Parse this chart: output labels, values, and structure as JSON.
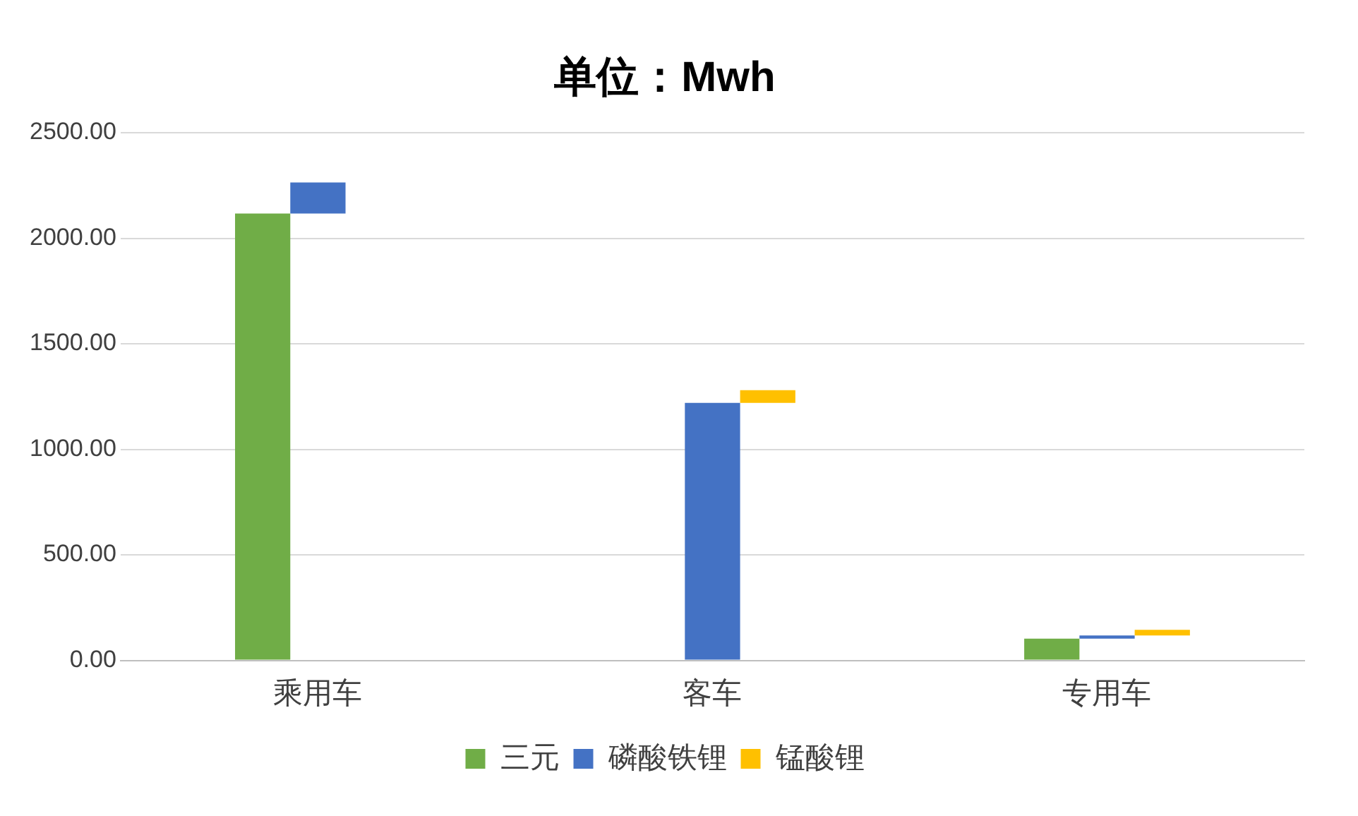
{
  "chart_data": {
    "type": "bar",
    "title": "单位：Mwh",
    "categories": [
      "乘用车",
      "客车",
      "专用车"
    ],
    "series": [
      {
        "name": "三元",
        "color": "#70ad47",
        "values": [
          2117,
          null,
          103
        ]
      },
      {
        "name": "磷酸铁锂",
        "color": "#4472c4",
        "values": [
          147,
          1220,
          15
        ],
        "base": [
          2117,
          0,
          103
        ]
      },
      {
        "name": "锰酸锂",
        "color": "#ffc000",
        "values": [
          null,
          60,
          27
        ],
        "base": [
          null,
          1220,
          118
        ]
      }
    ],
    "ylim": [
      0,
      2500
    ],
    "yticks": [
      {
        "value": 0,
        "label": "0.00"
      },
      {
        "value": 500,
        "label": "500.00"
      },
      {
        "value": 1000,
        "label": "1000.00"
      },
      {
        "value": 1500,
        "label": "1500.00"
      },
      {
        "value": 2000,
        "label": "2000.00"
      },
      {
        "value": 2500,
        "label": "2500.00"
      }
    ],
    "grid": "y",
    "legend": "bottom"
  }
}
